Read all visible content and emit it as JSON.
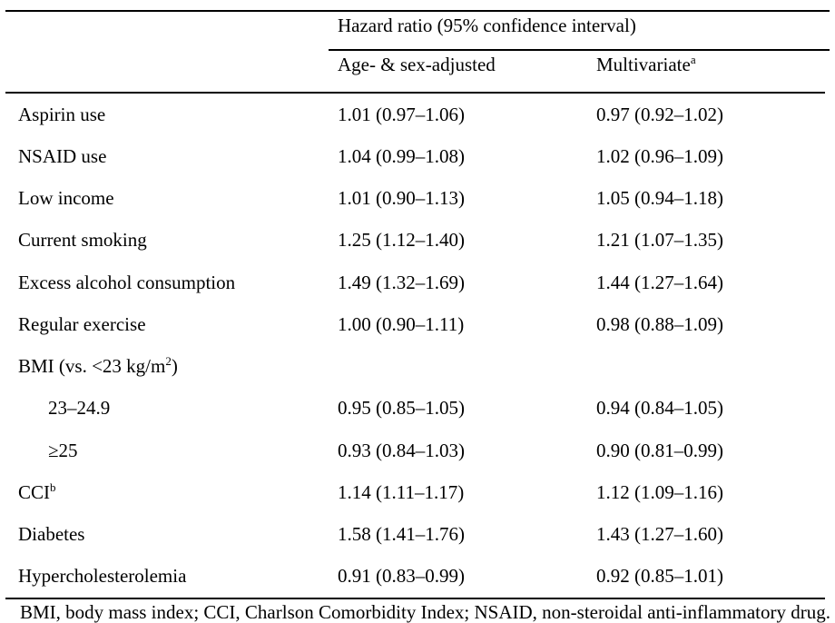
{
  "table": {
    "span_header": "Hazard ratio (95% confidence interval)",
    "columns": [
      {
        "label": "Age- & sex-adjusted",
        "sup": ""
      },
      {
        "label": "Multivariate",
        "sup": "a"
      }
    ],
    "rows": [
      {
        "label": "Aspirin use",
        "sup": "",
        "post": "",
        "indent": false,
        "age_sex": "1.01 (0.97–1.06)",
        "multivariate": "0.97 (0.92–1.02)"
      },
      {
        "label": "NSAID use",
        "sup": "",
        "post": "",
        "indent": false,
        "age_sex": "1.04 (0.99–1.08)",
        "multivariate": "1.02 (0.96–1.09)"
      },
      {
        "label": "Low income",
        "sup": "",
        "post": "",
        "indent": false,
        "age_sex": "1.01 (0.90–1.13)",
        "multivariate": "1.05 (0.94–1.18)"
      },
      {
        "label": "Current smoking",
        "sup": "",
        "post": "",
        "indent": false,
        "age_sex": "1.25 (1.12–1.40)",
        "multivariate": "1.21 (1.07–1.35)"
      },
      {
        "label": "Excess alcohol consumption",
        "sup": "",
        "post": "",
        "indent": false,
        "age_sex": "1.49 (1.32–1.69)",
        "multivariate": "1.44 (1.27–1.64)"
      },
      {
        "label": "Regular exercise",
        "sup": "",
        "post": "",
        "indent": false,
        "age_sex": "1.00 (0.90–1.11)",
        "multivariate": "0.98 (0.88–1.09)"
      },
      {
        "label": "BMI (vs. <23 kg/m",
        "sup": "2",
        "post": ")",
        "indent": false,
        "age_sex": "",
        "multivariate": ""
      },
      {
        "label": "23–24.9",
        "sup": "",
        "post": "",
        "indent": true,
        "age_sex": "0.95 (0.85–1.05)",
        "multivariate": "0.94 (0.84–1.05)"
      },
      {
        "label": "≥25",
        "sup": "",
        "post": "",
        "indent": true,
        "age_sex": "0.93 (0.84–1.03)",
        "multivariate": "0.90 (0.81–0.99)"
      },
      {
        "label": "CCI",
        "sup": "b",
        "post": "",
        "indent": false,
        "age_sex": "1.14 (1.11–1.17)",
        "multivariate": "1.12 (1.09–1.16)"
      },
      {
        "label": "Diabetes",
        "sup": "",
        "post": "",
        "indent": false,
        "age_sex": "1.58 (1.41–1.76)",
        "multivariate": "1.43 (1.27–1.60)"
      },
      {
        "label": "Hypercholesterolemia",
        "sup": "",
        "post": "",
        "indent": false,
        "age_sex": "0.91 (0.83–0.99)",
        "multivariate": "0.92 (0.85–1.01)"
      }
    ],
    "footnote": "BMI, body mass index; CCI, Charlson Comorbidity Index; NSAID, non-steroidal anti-inflammatory drug."
  }
}
